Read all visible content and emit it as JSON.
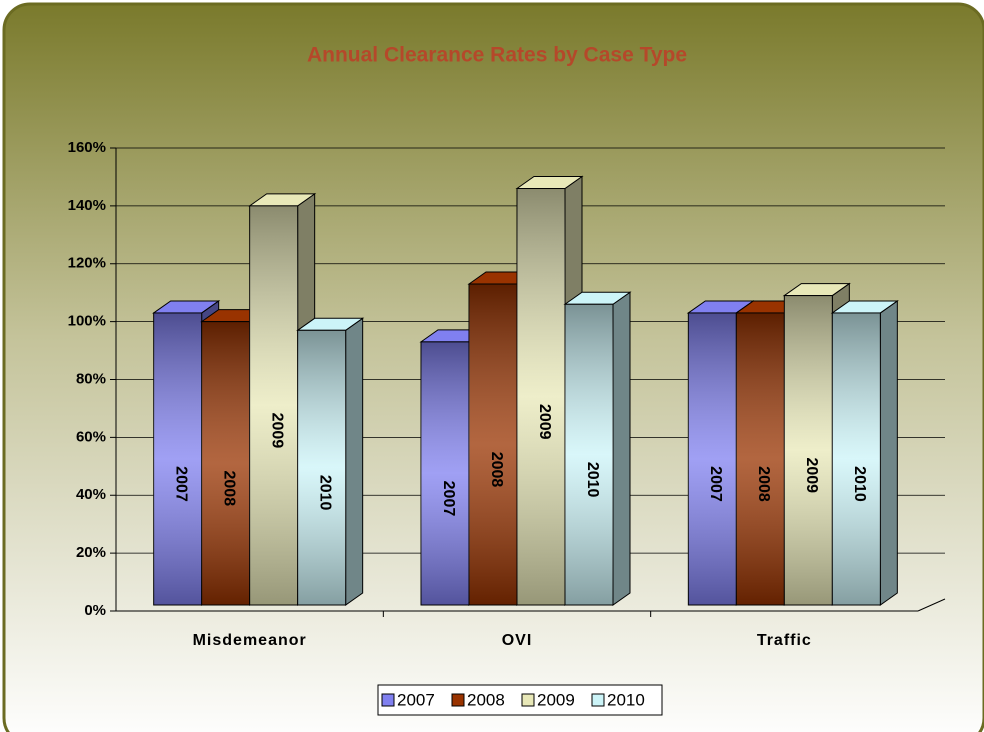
{
  "chart_data": {
    "type": "bar3d",
    "title": "Annual Clearance Rates by Case Type",
    "categories": [
      "Misdemeanor",
      "OVI",
      "Traffic"
    ],
    "series": [
      {
        "name": "2007",
        "color": "#8080f0",
        "values": [
          103,
          93,
          103
        ]
      },
      {
        "name": "2008",
        "color": "#993300",
        "values": [
          100,
          113,
          103
        ]
      },
      {
        "name": "2009",
        "color": "#e8e8b8",
        "values": [
          140,
          146,
          109
        ]
      },
      {
        "name": "2010",
        "color": "#ccf4f8",
        "values": [
          97,
          106,
          103
        ]
      }
    ],
    "ylim": [
      0,
      160
    ],
    "yticks": [
      {
        "value": 0,
        "label": "0%"
      },
      {
        "value": 20,
        "label": "20%"
      },
      {
        "value": 40,
        "label": "40%"
      },
      {
        "value": 60,
        "label": "60%"
      },
      {
        "value": 80,
        "label": "80%"
      },
      {
        "value": 100,
        "label": "100%"
      },
      {
        "value": 120,
        "label": "120%"
      },
      {
        "value": 140,
        "label": "140%"
      },
      {
        "value": 160,
        "label": "160%"
      }
    ],
    "grid": true,
    "legend": "bottom"
  }
}
